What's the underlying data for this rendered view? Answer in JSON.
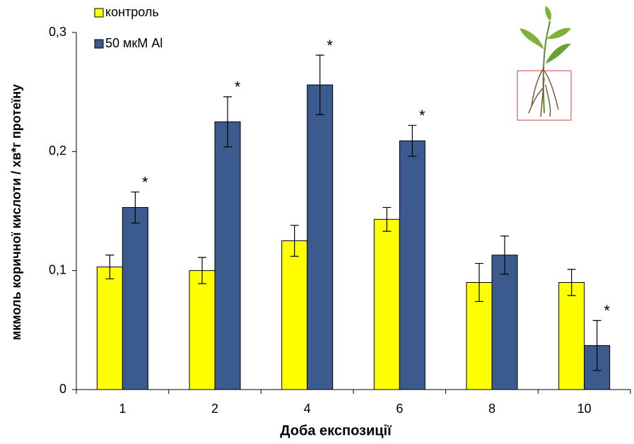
{
  "chart_data": {
    "type": "bar",
    "y_label": "мкмоль коричної кислоти / хв*г протеїну",
    "x_label": "Доба експозиції",
    "categories": [
      "1",
      "2",
      "4",
      "6",
      "8",
      "10"
    ],
    "series": [
      {
        "name": "контроль",
        "color": "#ffff00",
        "values": [
          0.103,
          0.1,
          0.125,
          0.143,
          0.09,
          0.09
        ],
        "errors": [
          0.01,
          0.011,
          0.013,
          0.01,
          0.016,
          0.011
        ]
      },
      {
        "name": "50 мкМ Al",
        "color": "#3b5a8e",
        "values": [
          0.153,
          0.225,
          0.256,
          0.209,
          0.113,
          0.037
        ],
        "errors": [
          0.013,
          0.021,
          0.025,
          0.013,
          0.016,
          0.021
        ],
        "significance": [
          "*",
          "*",
          "*",
          "*",
          null,
          "*"
        ]
      }
    ],
    "ylim": [
      0,
      0.3
    ],
    "yticks": [
      {
        "value": 0,
        "label": "0"
      },
      {
        "value": 0.1,
        "label": "0,1"
      },
      {
        "value": 0.2,
        "label": "0,2"
      },
      {
        "value": 0.3,
        "label": "0,3"
      }
    ],
    "legend": "top-left"
  }
}
